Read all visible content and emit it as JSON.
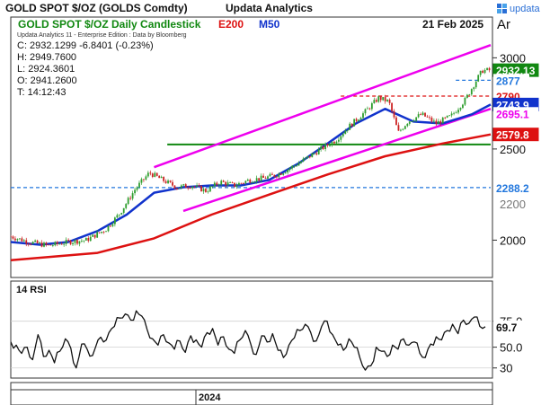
{
  "header": {
    "title": "GOLD SPOT $/OZ (GOLDS Comdty)",
    "brand": "Updata Analytics",
    "brand_logo_text": "updata",
    "chart_title": "GOLD SPOT $/OZ Daily Candlestick",
    "date": "21 Feb 2025",
    "currency": "Ar",
    "edition_note": "Updata Analytics 11 - Enterprise Edition : Data by Bloomberg"
  },
  "ohlc": {
    "close": "C: 2932.1299  -6.8401 (-0.23%)",
    "high": "H: 2949.7600",
    "low": "L: 2924.3601",
    "open": "O: 2941.2600",
    "time": "T: 14:12:43"
  },
  "legend": {
    "e200": {
      "label": "E200",
      "color": "#dd1111"
    },
    "m50": {
      "label": "M50",
      "color": "#1133cc"
    }
  },
  "colors": {
    "up_candle": "#2e9e2e",
    "down_candle": "#cc2222",
    "channel": "#ee00ee",
    "support": "#118811",
    "level_blue": "#2277dd",
    "level_red": "#dd1111",
    "rsi_line": "#111111"
  },
  "chart_data": [
    {
      "type": "candlestick",
      "series": [
        {
          "name": "GOLD SPOT $/OZ",
          "last": 2932.13
        },
        {
          "name": "E200",
          "last": 2579.8
        },
        {
          "name": "M50",
          "last": 2743.9
        }
      ],
      "y_ticks": [
        "3000",
        "2500",
        "2000"
      ],
      "y_ticks_partial": [
        "2200"
      ],
      "ylim": [
        1810,
        3120
      ],
      "x_label": "2024",
      "x_range": [
        "2023-10-01",
        "2025-02-21"
      ],
      "price_labels": [
        {
          "text": "2932.13",
          "value": 2932.13,
          "bg": "#118811",
          "fg": "#ffffff"
        },
        {
          "text": "2877",
          "value": 2877,
          "bg": "#ffffff",
          "fg": "#2277dd"
        },
        {
          "text": "2790",
          "value": 2790,
          "bg": "#ffffff",
          "fg": "#dd1111"
        },
        {
          "text": "2743.9",
          "value": 2743.9,
          "bg": "#1133cc",
          "fg": "#ffffff"
        },
        {
          "text": "2695.1",
          "value": 2695.1,
          "bg": "#ffffff",
          "fg": "#ee00ee"
        },
        {
          "text": "2579.8",
          "value": 2579.8,
          "bg": "#dd1111",
          "fg": "#ffffff"
        },
        {
          "text": "2288.2",
          "value": 2288.2,
          "bg": "#ffffff",
          "fg": "#2277dd"
        }
      ],
      "levels": [
        {
          "value": 2877,
          "style": "dashed",
          "color": "#2277dd",
          "from": "2025-01-15",
          "to": "2025-02-21"
        },
        {
          "value": 2790,
          "style": "dashed",
          "color": "#dd1111",
          "from": "2024-09-15",
          "to": "2025-02-21"
        },
        {
          "value": 2525,
          "style": "solid",
          "color": "#118811",
          "from": "2024-03-15",
          "to": "2025-02-21"
        },
        {
          "value": 2288.2,
          "style": "dashed",
          "color": "#2277dd",
          "from": "2023-10-01",
          "to": "2025-02-21"
        }
      ],
      "channel_lines": [
        {
          "from": [
            "2024-03-01",
            2400
          ],
          "to": [
            "2025-02-21",
            3070
          ]
        },
        {
          "from": [
            "2024-04-01",
            2160
          ],
          "to": [
            "2025-02-21",
            2720
          ]
        }
      ],
      "e200": [
        [
          "2023-10-01",
          1890
        ],
        [
          "2024-01-01",
          1930
        ],
        [
          "2024-03-01",
          2010
        ],
        [
          "2024-05-01",
          2140
        ],
        [
          "2024-07-01",
          2250
        ],
        [
          "2024-09-01",
          2360
        ],
        [
          "2024-11-01",
          2460
        ],
        [
          "2025-01-01",
          2530
        ],
        [
          "2025-02-21",
          2579.8
        ]
      ],
      "m50": [
        [
          "2023-10-01",
          1990
        ],
        [
          "2023-11-01",
          1975
        ],
        [
          "2023-12-01",
          1990
        ],
        [
          "2024-01-01",
          2050
        ],
        [
          "2024-02-01",
          2140
        ],
        [
          "2024-03-01",
          2260
        ],
        [
          "2024-04-01",
          2290
        ],
        [
          "2024-05-01",
          2300
        ],
        [
          "2024-06-01",
          2300
        ],
        [
          "2024-07-01",
          2330
        ],
        [
          "2024-08-01",
          2420
        ],
        [
          "2024-09-01",
          2530
        ],
        [
          "2024-10-01",
          2640
        ],
        [
          "2024-11-01",
          2720
        ],
        [
          "2024-12-01",
          2650
        ],
        [
          "2025-01-01",
          2640
        ],
        [
          "2025-02-01",
          2690
        ],
        [
          "2025-02-21",
          2743.9
        ]
      ],
      "price_path": [
        [
          "2023-10-01",
          2020
        ],
        [
          "2023-10-20",
          1990
        ],
        [
          "2023-11-10",
          1970
        ],
        [
          "2023-12-01",
          1990
        ],
        [
          "2023-12-20",
          2000
        ],
        [
          "2024-01-10",
          2060
        ],
        [
          "2024-01-25",
          2150
        ],
        [
          "2024-02-10",
          2280
        ],
        [
          "2024-02-25",
          2370
        ],
        [
          "2024-03-10",
          2330
        ],
        [
          "2024-03-25",
          2290
        ],
        [
          "2024-04-10",
          2300
        ],
        [
          "2024-04-25",
          2270
        ],
        [
          "2024-05-10",
          2320
        ],
        [
          "2024-05-25",
          2300
        ],
        [
          "2024-06-10",
          2330
        ],
        [
          "2024-06-25",
          2340
        ],
        [
          "2024-07-10",
          2360
        ],
        [
          "2024-07-25",
          2400
        ],
        [
          "2024-08-10",
          2450
        ],
        [
          "2024-08-25",
          2500
        ],
        [
          "2024-09-10",
          2550
        ],
        [
          "2024-09-25",
          2630
        ],
        [
          "2024-10-10",
          2700
        ],
        [
          "2024-10-25",
          2780
        ],
        [
          "2024-11-05",
          2760
        ],
        [
          "2024-11-15",
          2590
        ],
        [
          "2024-11-25",
          2650
        ],
        [
          "2024-12-10",
          2690
        ],
        [
          "2024-12-25",
          2640
        ],
        [
          "2025-01-10",
          2680
        ],
        [
          "2025-01-25",
          2770
        ],
        [
          "2025-02-05",
          2870
        ],
        [
          "2025-02-12",
          2930
        ],
        [
          "2025-02-21",
          2932
        ]
      ]
    },
    {
      "type": "line",
      "title": "14 RSI",
      "y_ticks": [
        "75.0",
        "50.0",
        "30"
      ],
      "ylim": [
        22,
        92
      ],
      "last": 69.7,
      "last_label": "69.7",
      "guide_levels": [
        75,
        50,
        30
      ],
      "values": [
        55,
        52,
        44,
        50,
        38,
        62,
        41,
        47,
        35,
        46,
        58,
        49,
        30,
        53,
        48,
        42,
        57,
        55,
        64,
        70,
        78,
        82,
        76,
        85,
        80,
        67,
        58,
        52,
        62,
        54,
        48,
        56,
        45,
        61,
        57,
        50,
        64,
        68,
        52,
        60,
        48,
        44,
        57,
        66,
        53,
        43,
        61,
        55,
        63,
        47,
        40,
        52,
        59,
        66,
        72,
        64,
        56,
        70,
        75,
        62,
        52,
        47,
        58,
        50,
        40,
        28,
        32,
        50,
        46,
        41,
        52,
        48,
        58,
        52,
        55,
        44,
        40,
        53,
        60,
        57,
        66,
        72,
        63,
        76,
        73,
        79,
        70,
        69.7
      ]
    }
  ]
}
